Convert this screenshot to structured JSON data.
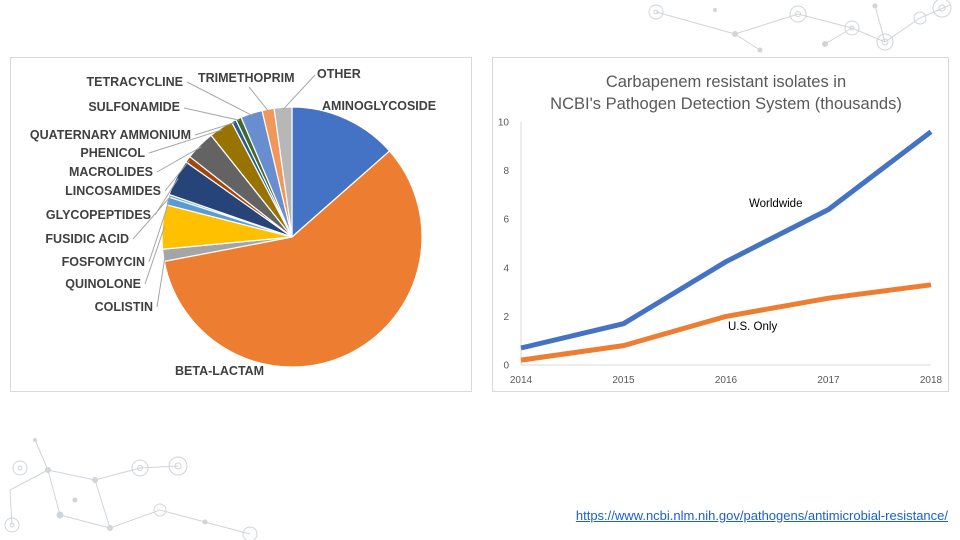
{
  "colors": {
    "aminoglycoside": "#4472c4",
    "beta_lactam": "#ed7d31",
    "colistin": "#a5a5a5",
    "quinolone": "#ffc000",
    "fosfomycin": "#5b9bd5",
    "fusidic_acid": "#5b9bd5",
    "glycopeptides": "#264478",
    "lincosamides": "#9e480e",
    "macrolides": "#636363",
    "phenicol": "#997300",
    "quaternary_ammonium": "#255e91",
    "sulfonamide": "#43682b",
    "tetracycline": "#698ed0",
    "trimethoprim": "#f1975a",
    "other": "#b7b7b7",
    "worldwide_line": "#4472c4",
    "us_line": "#ed7d31",
    "link": "#1a5ed8"
  },
  "chart_data": [
    {
      "type": "pie",
      "title": "",
      "slices": [
        {
          "label": "AMINOGLYCOSIDE",
          "value": 13.5,
          "color": "#4472c4"
        },
        {
          "label": "BETA-LACTAM",
          "value": 58.5,
          "color": "#ed7d31"
        },
        {
          "label": "COLISTIN",
          "value": 1.5,
          "color": "#a5a5a5"
        },
        {
          "label": "QUINOLONE",
          "value": 5.5,
          "color": "#ffc000"
        },
        {
          "label": "FOSFOMYCIN",
          "value": 1.0,
          "color": "#5b9bd5"
        },
        {
          "label": "FUSIDIC ACID",
          "value": 0.3,
          "color": "#5b9bd5"
        },
        {
          "label": "GLYCOPEPTIDES",
          "value": 4.5,
          "color": "#264478"
        },
        {
          "label": "LINCOSAMIDES",
          "value": 0.8,
          "color": "#9e480e"
        },
        {
          "label": "MACROLIDES",
          "value": 3.7,
          "color": "#636363"
        },
        {
          "label": "PHENICOL",
          "value": 3.0,
          "color": "#997300"
        },
        {
          "label": "QUATERNARY AMMONIUM",
          "value": 0.6,
          "color": "#255e91"
        },
        {
          "label": "SULFONAMIDE",
          "value": 0.7,
          "color": "#43682b"
        },
        {
          "label": "TETRACYCLINE",
          "value": 2.7,
          "color": "#698ed0"
        },
        {
          "label": "TRIMETHOPRIM",
          "value": 1.5,
          "color": "#f1975a"
        },
        {
          "label": "OTHER",
          "value": 2.2,
          "color": "#b7b7b7"
        }
      ]
    },
    {
      "type": "line",
      "title": "Carbapenem resistant isolates in NCBI's Pathogen Detection System (thousands)",
      "title_lines": [
        "Carbapenem resistant isolates in",
        "NCBI's Pathogen Detection System (thousands)"
      ],
      "x": [
        2014,
        2015,
        2016,
        2017,
        2018
      ],
      "x_ticks": [
        "2014",
        "2015",
        "2016",
        "2017",
        "2018"
      ],
      "y_ticks": [
        "0",
        "2",
        "4",
        "6",
        "8",
        "10"
      ],
      "ylim": [
        0,
        10
      ],
      "grid": false,
      "series": [
        {
          "name": "Worldwide",
          "values": [
            0.7,
            1.7,
            4.25,
            6.4,
            9.6
          ],
          "color": "#4472c4"
        },
        {
          "name": "U.S. Only",
          "values": [
            0.2,
            0.8,
            2.0,
            2.75,
            3.3
          ],
          "color": "#ed7d31"
        }
      ]
    }
  ],
  "source_link": "https://www.ncbi.nlm.nih.gov/pathogens/antimicrobial-resistance/"
}
